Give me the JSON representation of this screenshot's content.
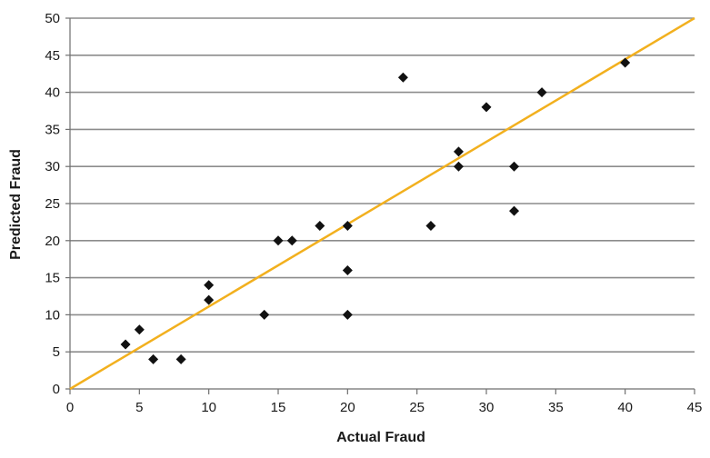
{
  "chart_data": {
    "type": "scatter",
    "title": "",
    "xlabel": "Actual Fraud",
    "ylabel": "Predicted Fraud",
    "xlim": [
      0,
      45
    ],
    "ylim": [
      0,
      50
    ],
    "x_ticks": [
      0,
      5,
      10,
      15,
      20,
      25,
      30,
      35,
      40,
      45
    ],
    "y_ticks": [
      0,
      5,
      10,
      15,
      20,
      25,
      30,
      35,
      40,
      45,
      50
    ],
    "grid": "horizontal",
    "legend": "none",
    "marker": "diamond",
    "marker_color": "#111111",
    "reference_line": {
      "from": [
        0,
        0
      ],
      "to": [
        45,
        50
      ],
      "color": "#f2b01e"
    },
    "points": [
      {
        "x": 4,
        "y": 6
      },
      {
        "x": 5,
        "y": 8
      },
      {
        "x": 6,
        "y": 4
      },
      {
        "x": 8,
        "y": 4
      },
      {
        "x": 10,
        "y": 14
      },
      {
        "x": 10,
        "y": 12
      },
      {
        "x": 14,
        "y": 10
      },
      {
        "x": 15,
        "y": 20
      },
      {
        "x": 16,
        "y": 20
      },
      {
        "x": 18,
        "y": 22
      },
      {
        "x": 20,
        "y": 22
      },
      {
        "x": 20,
        "y": 16
      },
      {
        "x": 20,
        "y": 10
      },
      {
        "x": 24,
        "y": 42
      },
      {
        "x": 26,
        "y": 22
      },
      {
        "x": 28,
        "y": 32
      },
      {
        "x": 28,
        "y": 30
      },
      {
        "x": 30,
        "y": 38
      },
      {
        "x": 32,
        "y": 30
      },
      {
        "x": 32,
        "y": 24
      },
      {
        "x": 34,
        "y": 40
      },
      {
        "x": 40,
        "y": 44
      }
    ]
  }
}
